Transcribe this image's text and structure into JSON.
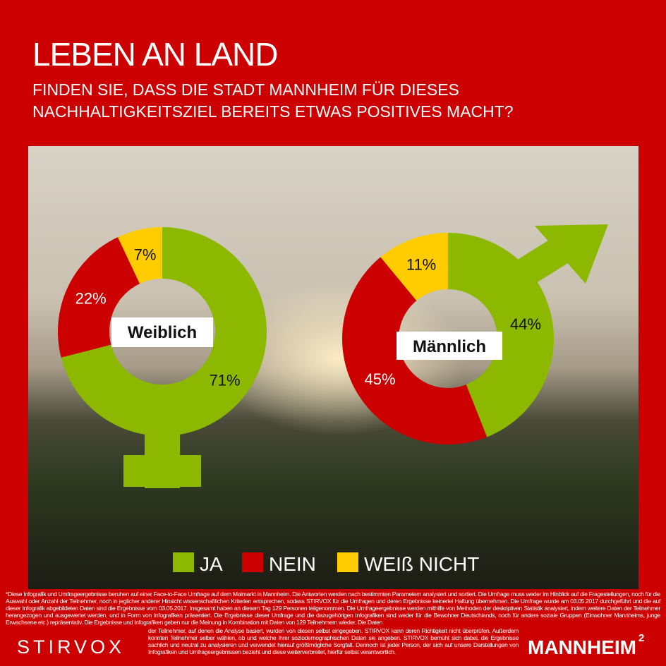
{
  "header": {
    "title": "LEBEN AN LAND",
    "question_line1": "FINDEN SIE, DASS DIE STADT MANNHEIM FÜR DIESES",
    "question_line2": "NACHHALTIGKEITSZIEL BEREITS ETWAS POSITIVES MACHT?"
  },
  "colors": {
    "background": "#cc0000",
    "ja": "#8cb800",
    "nein": "#cc0000",
    "weiss_nicht": "#ffcc00"
  },
  "chart_data": [
    {
      "type": "pie",
      "variant": "donut",
      "title": "Weiblich",
      "icon": "female-symbol",
      "categories": [
        "JA",
        "NEIN",
        "WEIß NICHT"
      ],
      "values": [
        71,
        22,
        7
      ],
      "labels": [
        "71%",
        "22%",
        "7%"
      ]
    },
    {
      "type": "pie",
      "variant": "donut",
      "title": "Männlich",
      "icon": "male-symbol",
      "categories": [
        "JA",
        "NEIN",
        "WEIß NICHT"
      ],
      "values": [
        44,
        45,
        11
      ],
      "labels": [
        "44%",
        "45%",
        "11%"
      ]
    }
  ],
  "legend": {
    "items": [
      {
        "label": "JA",
        "color": "#8cb800"
      },
      {
        "label": "NEIN",
        "color": "#cc0000"
      },
      {
        "label": "WEIß NICHT",
        "color": "#ffcc00"
      }
    ]
  },
  "footer": {
    "disclaimer_main": "*Diese Infografik und Umfrageergebnisse beruhen auf einer Face-to-Face Umfrage auf dem Maimarkt in Mannheim. Die Antworten werden nach bestimmten Parametern analysiert und sortiert. Die Umfrage muss weder im Hinblick auf die Fragestellungen, noch für die Auswahl oder Anzahl der Teilnehmer, noch in jeglicher anderer Hinsicht wissenschaftlichen Kriterien entsprechen, sodass STIRVOX für die Umfragen und deren Ergebnisse keinerlei Haftung übernehmen. Die Umfrage wurde am 03.05.2017 durchgeführt und die auf dieser Infografik abgebildeten Daten sind die Ergebnisse vom 03.05.2017. Insgesamt haben an diesem Tag 129 Personen teilgenommen. Die Umfrageergebnisse werden mithilfe von Methoden der deskriptiven Statistik analysiert, indem weitere Daten der Teilnehmer herangezogen und ausgewertet werden, und in Form von Infografiken präsentiert. Die Ergebnisse dieser Umfrage und die dazugehörigen Infografiken sind weder für die Bewohner Deutschlands, noch für andere soziale Gruppen (Einwohner Mannheims, junge Erwachsene etc.) repräsentativ. Die Ergebnisse und Infografiken geben nur die Meinung in Kombination mit Daten von 129 Teilnehmern wieder. Die Daten",
    "disclaimer_rest": "der Teilnehmer, auf denen die Analyse basiert, wurden von diesen selbst eingegeben. STIRVOX kann deren Richtigkeit nicht überprüfen. Außerdem konnten Teilnehmer selber wählen, ob und welche ihrer soziodemographischen Daten sie angeben. STIRVOX bemüht sich dabei, die Ergebnisse sachlich und neutral zu analysieren und verwendet hierauf größtmögliche Sorgfalt. Dennoch ist jeder Person, der sich auf unsere Darstellungen von Infografiken und Umfrageergebnissen bezieht und diese weiterverbreitet, hierfür selbst verantwortlich.",
    "logo_left": "STIRVOX",
    "logo_right": "MANNHEIM",
    "logo_right_sup": "2"
  }
}
